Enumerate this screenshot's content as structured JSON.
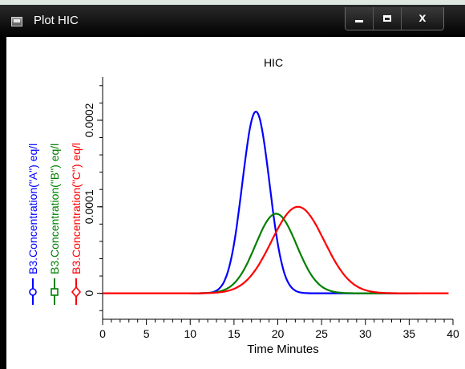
{
  "window": {
    "title": "Plot HIC",
    "icon": "window-app-icon",
    "controls": {
      "minimize": "minimize-icon",
      "maximize": "maximize-icon",
      "close_label": "x"
    }
  },
  "chart_data": {
    "type": "line",
    "title": "HIC",
    "xlabel": "Time Minutes",
    "xlim": [
      0,
      40
    ],
    "ylim": [
      -3e-05,
      0.00025
    ],
    "x_ticks": [
      "0",
      "5",
      "10",
      "15",
      "20",
      "25",
      "30",
      "35",
      "40"
    ],
    "y_ticks": [
      "0",
      "0.0001",
      "0.0002"
    ],
    "grid": false,
    "legend_position": "left-vertical",
    "series": [
      {
        "name": "B3.Concentration(\"A\") eq/l",
        "color": "#0000ff",
        "marker": "circle",
        "start": 10,
        "end": 35,
        "center": 17.5,
        "sigma": 1.55,
        "peak": 0.00021
      },
      {
        "name": "B3.Concentration(\"B\") eq/l",
        "color": "#008000",
        "marker": "square",
        "start": 10,
        "end": 36,
        "center": 19.8,
        "sigma": 2.35,
        "peak": 9.2e-05
      },
      {
        "name": "B3.Concentration(\"C\") eq/l",
        "color": "#ff0000",
        "marker": "diamond",
        "start": 0,
        "end": 39.5,
        "center": 22.3,
        "sigma": 3.0,
        "peak": 0.0001
      }
    ]
  }
}
